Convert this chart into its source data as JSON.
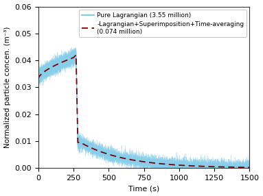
{
  "title": "",
  "xlabel": "Time (s)",
  "ylabel": "Normalized particle concen. (m⁻³)",
  "xlim": [
    0,
    1500
  ],
  "ylim": [
    0,
    0.06
  ],
  "yticks": [
    0.0,
    0.01,
    0.02,
    0.03,
    0.04,
    0.05,
    0.06
  ],
  "xticks": [
    0,
    250,
    500,
    750,
    1000,
    1250,
    1500
  ],
  "legend1_label": "Pure Lagrangian (3.55 million)",
  "legend2_label": "-Lagrangian+Superimposition+Time-averaging\n(0.074 million)",
  "line1_color": "#87CEEB",
  "line2_color": "#7B0000",
  "noise_amplitude": 0.0018,
  "background_color": "#ffffff"
}
